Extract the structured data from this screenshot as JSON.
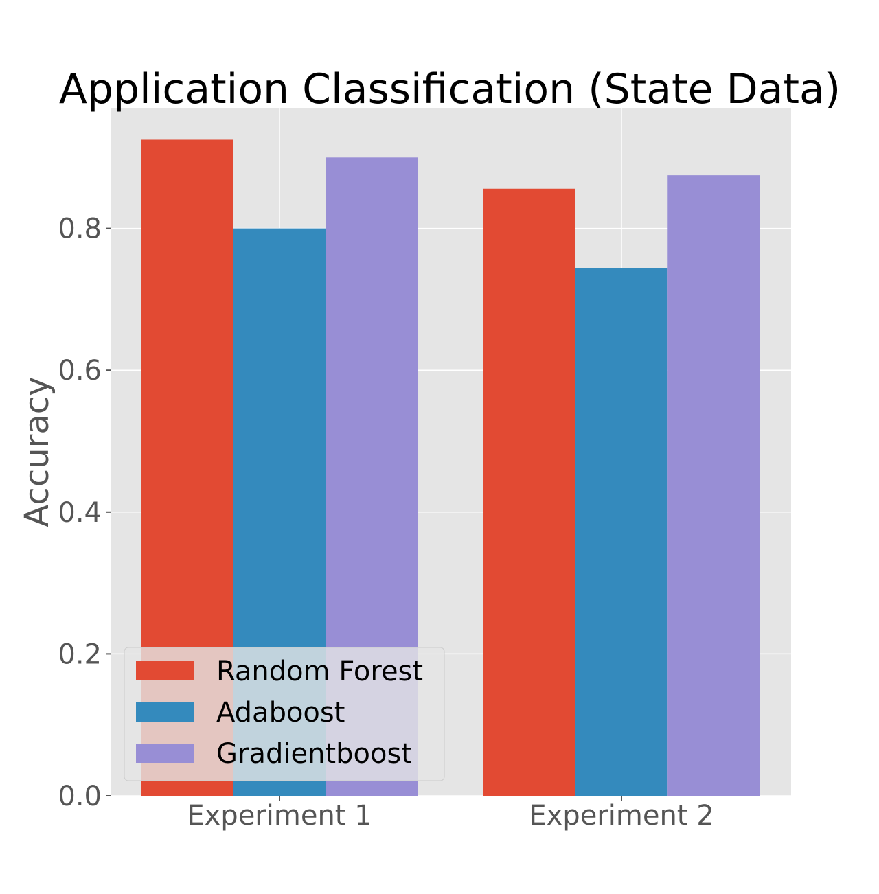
{
  "chart_data": {
    "type": "bar",
    "title": "Application Classification (State Data)",
    "xlabel": "",
    "ylabel": "Accuracy",
    "categories": [
      "Experiment 1",
      "Experiment 2"
    ],
    "series": [
      {
        "name": "Random Forest",
        "values": [
          0.925,
          0.856
        ],
        "color": "#E24A33"
      },
      {
        "name": "Adaboost",
        "values": [
          0.8,
          0.744
        ],
        "color": "#348ABD"
      },
      {
        "name": "Gradientboost",
        "values": [
          0.9,
          0.875
        ],
        "color": "#988ED5"
      }
    ],
    "ylim": [
      0,
      0.97
    ],
    "yticks": [
      0.0,
      0.2,
      0.4,
      0.6,
      0.8
    ],
    "ytick_labels": [
      "0.0",
      "0.2",
      "0.4",
      "0.6",
      "0.8"
    ],
    "grid": true,
    "legend_position": "lower-left",
    "colors": {
      "background": "#E5E5E5",
      "grid": "#FFFFFF",
      "tick": "#555555"
    }
  }
}
